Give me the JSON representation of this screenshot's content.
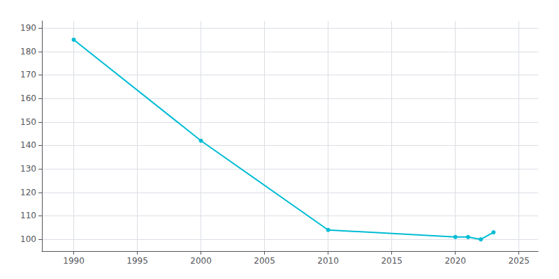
{
  "chart_data": {
    "type": "line",
    "x": [
      1990,
      2000,
      2010,
      2020,
      2021,
      2022,
      2023
    ],
    "values": [
      185,
      142,
      104,
      101,
      101,
      100,
      103
    ],
    "color": "#00BCD4",
    "marker": "circle",
    "xlim": [
      1987.5,
      2026.5
    ],
    "xticks": [
      1990,
      1995,
      2000,
      2005,
      2010,
      2015,
      2020,
      2025
    ],
    "ylim": [
      95,
      193
    ],
    "yticks": [
      100,
      110,
      120,
      130,
      140,
      150,
      160,
      170,
      180,
      190
    ],
    "grid": true
  }
}
